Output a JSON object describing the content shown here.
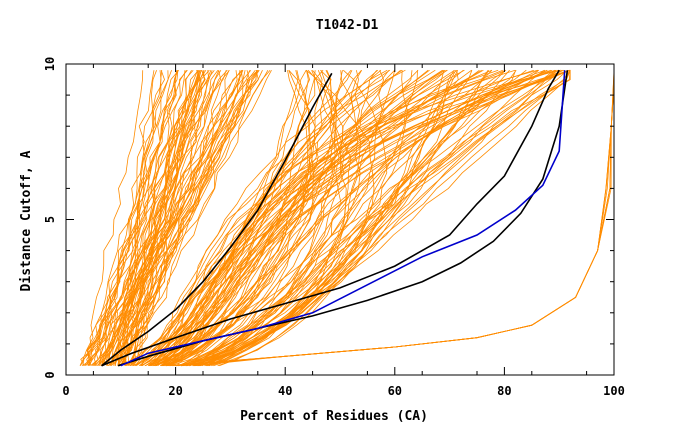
{
  "chart_data": {
    "type": "line",
    "title": "T1042-D1",
    "xlabel": "Percent of Residues (CA)",
    "ylabel": "Distance Cutoff, A",
    "xlim": [
      0,
      100
    ],
    "ylim": [
      0,
      10
    ],
    "xticks": [
      "0",
      "20",
      "40",
      "60",
      "80",
      "100"
    ],
    "yticks": [
      "0",
      "5",
      "10"
    ],
    "grid": false,
    "legend": "none",
    "colors": {
      "models": "#ff8c00",
      "highlight": "#000000",
      "best": "#0000cc"
    },
    "series": [
      {
        "color": "#000000",
        "x": [
          6.5,
          10,
          15,
          20,
          25,
          30,
          35,
          40,
          45,
          48.5
        ],
        "y": [
          0.3,
          0.8,
          1.4,
          2.1,
          3,
          4.1,
          5.3,
          6.9,
          8.6,
          9.7
        ]
      },
      {
        "color": "#000000",
        "x": [
          6.5,
          12,
          20,
          30,
          40,
          50,
          60,
          70,
          75,
          80,
          85,
          88,
          90
        ],
        "y": [
          0.3,
          0.7,
          1.2,
          1.8,
          2.3,
          2.8,
          3.5,
          4.5,
          5.5,
          6.4,
          8,
          9.2,
          9.8
        ]
      },
      {
        "color": "#000000",
        "x": [
          9.5,
          15,
          25,
          35,
          45,
          55,
          65,
          72,
          78,
          83,
          87,
          90,
          91.5
        ],
        "y": [
          0.3,
          0.6,
          1.1,
          1.5,
          1.9,
          2.4,
          3,
          3.6,
          4.3,
          5.2,
          6.3,
          8,
          9.8
        ]
      },
      {
        "color": "#0000cc",
        "x": [
          10,
          15,
          25,
          35,
          45,
          55,
          65,
          75,
          82,
          87,
          90,
          91
        ],
        "y": [
          0.3,
          0.7,
          1.1,
          1.5,
          2,
          2.9,
          3.8,
          4.5,
          5.3,
          6.1,
          7.2,
          9.8
        ]
      }
    ]
  }
}
